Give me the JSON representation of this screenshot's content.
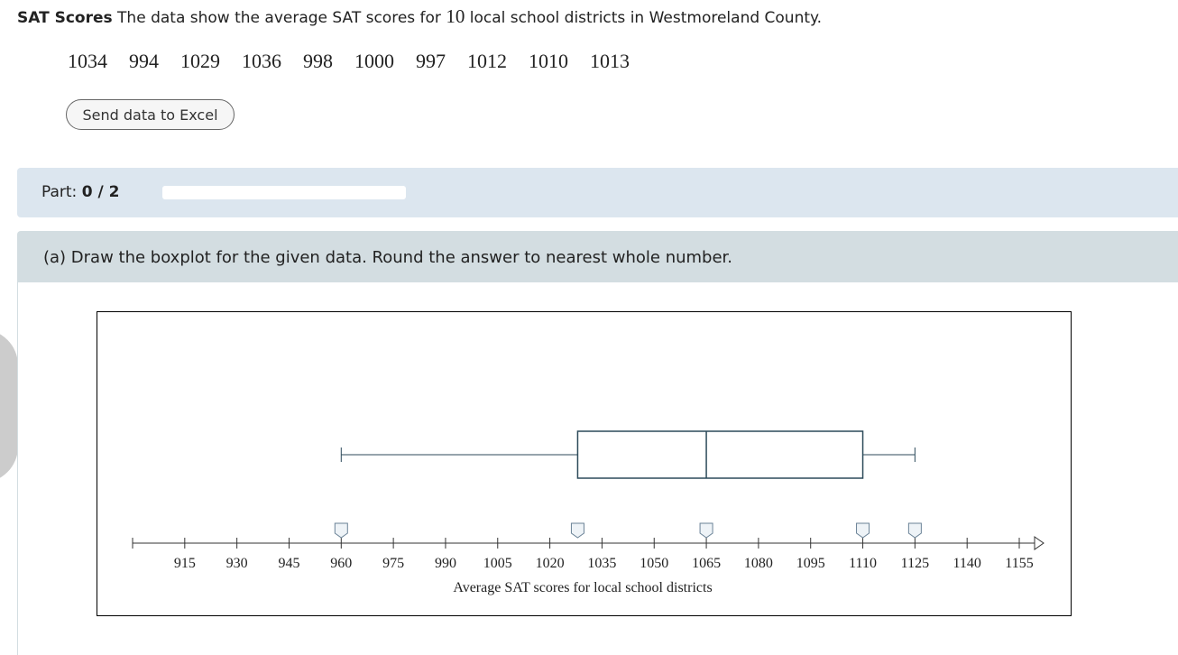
{
  "problem": {
    "title": "SAT Scores",
    "text_before": "The data show the average SAT scores for",
    "count": 10,
    "text_after": "local school districts in Westmoreland County.",
    "data": [
      1034,
      994,
      1029,
      1036,
      998,
      1000,
      997,
      1012,
      1010,
      1013
    ]
  },
  "button": "Send data to Excel",
  "part": {
    "label": "Part:",
    "value": "0 / 2"
  },
  "question": "(a) Draw the boxplot for the given data. Round the answer to nearest whole number.",
  "chart_data": {
    "type": "boxplot",
    "xlabel": "Average SAT scores for local school districts",
    "xlim": [
      900,
      1162
    ],
    "xticks": [
      915,
      930,
      945,
      960,
      975,
      990,
      1005,
      1020,
      1035,
      1050,
      1065,
      1080,
      1095,
      1110,
      1125,
      1140,
      1155
    ],
    "min": 960,
    "q1": 1028,
    "median": 1065,
    "q3": 1110,
    "max": 1125,
    "color": "#2c4a5a"
  }
}
